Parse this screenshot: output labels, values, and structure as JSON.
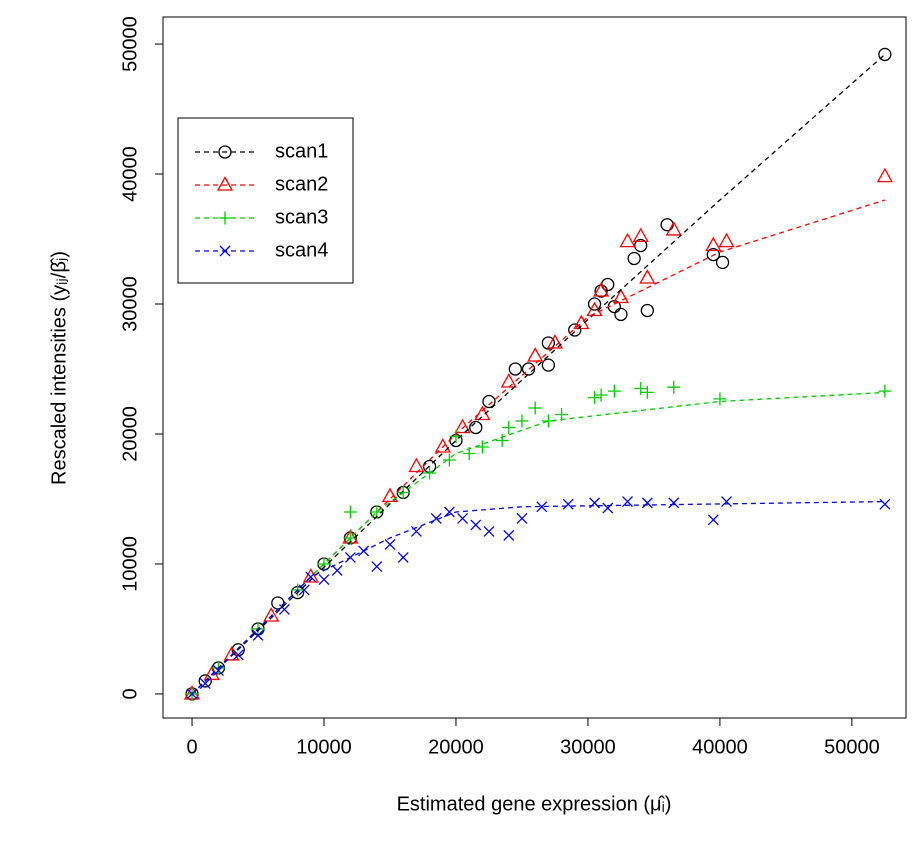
{
  "chart_data": {
    "type": "scatter",
    "x_label": "Estimated gene expression (μ̂ᵢ)",
    "y_label": "Rescaled intensities (yᵢⱼ/β̂ⱼ)",
    "xlim": [
      -2200,
      54100
    ],
    "ylim": [
      -1850,
      52080
    ],
    "xticks": [
      0,
      10000,
      20000,
      30000,
      40000,
      50000
    ],
    "yticks": [
      0,
      10000,
      20000,
      30000,
      40000,
      50000
    ],
    "legend": "top-left",
    "series": [
      {
        "name": "scan1",
        "color": "#000000",
        "marker": "circle",
        "x": [
          0,
          1000,
          2000,
          3500,
          5000,
          6500,
          8000,
          10000,
          12000,
          14000,
          16000,
          18000,
          20000,
          21500,
          22500,
          24500,
          25500,
          27000,
          27000,
          29000,
          30500,
          31000,
          31500,
          32000,
          32500,
          33500,
          34000,
          34500,
          36000,
          39500,
          40200,
          52500
        ],
        "y": [
          0,
          1000,
          2000,
          3400,
          5000,
          7000,
          7800,
          10000,
          12000,
          14000,
          15500,
          17500,
          19500,
          20500,
          22500,
          25000,
          25000,
          25300,
          27000,
          28000,
          30000,
          31000,
          31500,
          29800,
          29200,
          33500,
          34500,
          29500,
          36100,
          33800,
          33200,
          49200
        ],
        "line": {
          "x": [
            0,
            20000,
            30000,
            40000,
            52500
          ],
          "y": [
            0,
            19500,
            28800,
            38000,
            49200
          ]
        }
      },
      {
        "name": "scan2",
        "color": "#ff0000",
        "marker": "triangle",
        "x": [
          0,
          1500,
          3000,
          6000,
          9000,
          12000,
          15000,
          17000,
          19000,
          20500,
          22000,
          24000,
          26000,
          27500,
          29500,
          30500,
          31000,
          32500,
          33000,
          34000,
          34500,
          36500,
          39500,
          40500,
          52500
        ],
        "y": [
          0,
          1500,
          3000,
          6000,
          9000,
          12000,
          15200,
          17500,
          19000,
          20500,
          21500,
          24000,
          26000,
          27000,
          28500,
          29500,
          31000,
          30500,
          34800,
          35200,
          32000,
          35700,
          34500,
          34800,
          39800
        ],
        "line": {
          "x": [
            0,
            20000,
            30000,
            35000,
            40000,
            52500
          ],
          "y": [
            0,
            20000,
            29000,
            31500,
            34000,
            38000
          ]
        }
      },
      {
        "name": "scan3",
        "color": "#00cd00",
        "marker": "plus",
        "x": [
          0,
          2000,
          5000,
          8000,
          10000,
          12000,
          12000,
          14000,
          16000,
          18000,
          19500,
          20000,
          21000,
          22000,
          23500,
          24000,
          25000,
          26000,
          27000,
          28000,
          30500,
          31000,
          32000,
          34000,
          34500,
          36500,
          40000,
          52500
        ],
        "y": [
          0,
          2000,
          5000,
          8000,
          10000,
          12000,
          14000,
          14000,
          15500,
          17000,
          18000,
          19800,
          18500,
          19000,
          19500,
          20500,
          21000,
          22000,
          21000,
          21500,
          22800,
          23000,
          23300,
          23500,
          23200,
          23600,
          22700,
          23300
        ],
        "line": {
          "x": [
            0,
            14000,
            20000,
            27000,
            40000,
            52500
          ],
          "y": [
            0,
            14000,
            18500,
            21000,
            22500,
            23200
          ]
        }
      },
      {
        "name": "scan4",
        "color": "#0000ff",
        "marker": "cross",
        "x": [
          0,
          1000,
          2000,
          3500,
          5000,
          7000,
          8500,
          9000,
          10000,
          11000,
          12000,
          13000,
          14000,
          15000,
          16000,
          17000,
          18500,
          19500,
          20500,
          21500,
          22500,
          24000,
          25000,
          26500,
          28500,
          30500,
          31500,
          33000,
          34500,
          36500,
          39500,
          40500,
          52500
        ],
        "y": [
          0,
          800,
          1800,
          3000,
          4500,
          6500,
          8000,
          9000,
          8800,
          9500,
          10500,
          11000,
          9800,
          11500,
          10500,
          12500,
          13500,
          14000,
          13500,
          13000,
          12500,
          12200,
          13500,
          14400,
          14600,
          14700,
          14300,
          14800,
          14700,
          14700,
          13400,
          14800,
          14600
        ],
        "line": {
          "x": [
            0,
            9000,
            15000,
            20000,
            25000,
            52500
          ],
          "y": [
            0,
            9000,
            12000,
            14000,
            14400,
            14800
          ]
        }
      }
    ]
  }
}
